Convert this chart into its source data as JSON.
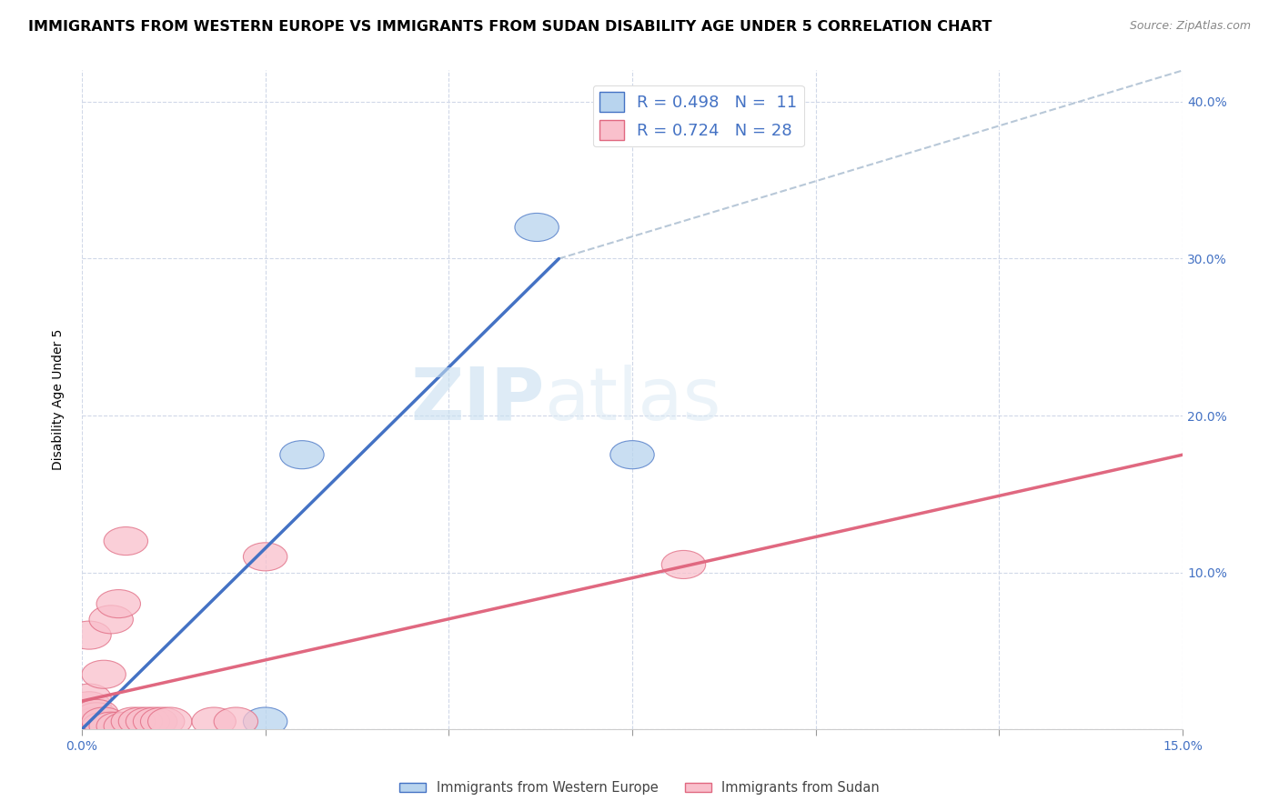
{
  "title": "IMMIGRANTS FROM WESTERN EUROPE VS IMMIGRANTS FROM SUDAN DISABILITY AGE UNDER 5 CORRELATION CHART",
  "source": "Source: ZipAtlas.com",
  "ylabel": "Disability Age Under 5",
  "xlim": [
    0,
    0.15
  ],
  "ylim": [
    0,
    0.42
  ],
  "xticks": [
    0.0,
    0.025,
    0.05,
    0.075,
    0.1,
    0.125,
    0.15
  ],
  "yticks": [
    0.0,
    0.1,
    0.2,
    0.3,
    0.4
  ],
  "ytick_labels_right": [
    "",
    "10.0%",
    "20.0%",
    "30.0%",
    "40.0%"
  ],
  "xtick_labels": [
    "0.0%",
    "",
    "",
    "",
    "",
    "",
    "15.0%"
  ],
  "western_europe_x": [
    0.001,
    0.001,
    0.001,
    0.002,
    0.002,
    0.003,
    0.004,
    0.025,
    0.03,
    0.062,
    0.075
  ],
  "western_europe_y": [
    0.002,
    0.005,
    0.008,
    0.002,
    0.005,
    0.002,
    0.002,
    0.005,
    0.175,
    0.32,
    0.175
  ],
  "sudan_x": [
    0.001,
    0.001,
    0.001,
    0.001,
    0.001,
    0.002,
    0.002,
    0.002,
    0.002,
    0.003,
    0.003,
    0.003,
    0.004,
    0.004,
    0.005,
    0.005,
    0.006,
    0.006,
    0.007,
    0.008,
    0.009,
    0.01,
    0.011,
    0.012,
    0.018,
    0.021,
    0.025,
    0.082
  ],
  "sudan_y": [
    0.005,
    0.008,
    0.015,
    0.02,
    0.06,
    0.002,
    0.005,
    0.008,
    0.01,
    0.002,
    0.005,
    0.035,
    0.002,
    0.07,
    0.002,
    0.08,
    0.002,
    0.12,
    0.005,
    0.005,
    0.005,
    0.005,
    0.005,
    0.005,
    0.005,
    0.005,
    0.11,
    0.105
  ],
  "blue_color": "#b8d4ee",
  "pink_color": "#f9c0cc",
  "blue_line_color": "#4472c4",
  "pink_line_color": "#e06880",
  "diag_line_color": "#b8c8d8",
  "legend_R1": "R = 0.498",
  "legend_N1": "N =  11",
  "legend_R2": "R = 0.724",
  "legend_N2": "N = 28",
  "watermark_zip": "ZIP",
  "watermark_atlas": "atlas",
  "title_fontsize": 11.5,
  "axis_label_fontsize": 10,
  "tick_fontsize": 10,
  "legend_fontsize": 13
}
